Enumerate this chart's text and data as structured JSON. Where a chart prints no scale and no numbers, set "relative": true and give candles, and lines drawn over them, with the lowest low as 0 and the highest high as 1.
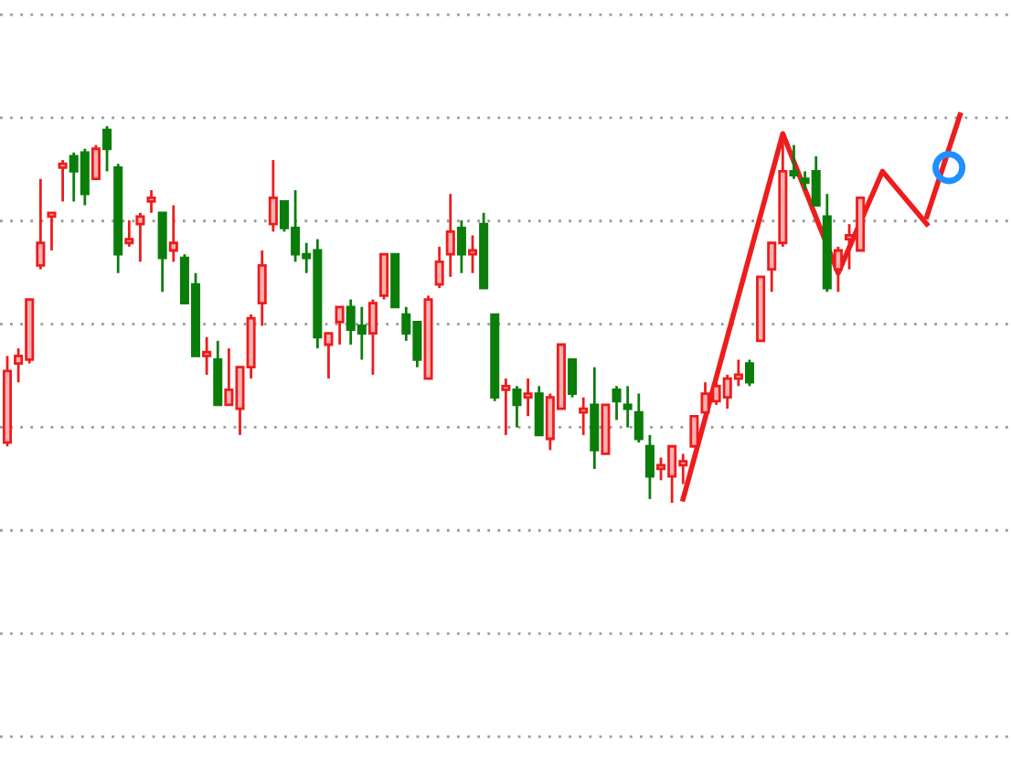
{
  "chart_data": {
    "type": "candlestick",
    "relative": true,
    "grid": "y",
    "tick_labels": false,
    "categories": [
      null,
      null,
      null,
      null,
      null,
      null,
      null,
      null,
      null,
      null,
      null,
      null,
      null,
      null,
      null,
      null,
      null,
      null,
      null,
      null,
      null,
      null,
      null,
      null,
      null,
      null,
      null,
      null,
      null,
      null,
      null,
      null,
      null,
      null,
      null,
      null,
      null,
      null,
      null,
      null,
      null,
      null,
      null,
      null,
      null,
      null,
      null,
      null,
      null,
      null,
      null,
      null,
      null,
      null,
      null,
      null,
      null,
      null,
      null,
      null,
      null,
      null,
      null,
      null,
      null,
      null,
      null,
      null,
      null,
      null,
      null,
      null,
      null,
      null,
      null,
      null,
      null,
      null,
      null,
      null,
      null,
      null,
      null,
      null,
      null,
      null,
      null,
      null,
      null,
      null,
      null
    ],
    "series": [
      {
        "type": "candlestick",
        "ohlc": [
          [
            0.16,
            0.39,
            0.15,
            0.35
          ],
          [
            0.37,
            0.41,
            0.32,
            0.39
          ],
          [
            0.38,
            0.54,
            0.37,
            0.54
          ],
          [
            0.63,
            0.86,
            0.62,
            0.69
          ],
          [
            0.76,
            0.77,
            0.67,
            0.77
          ],
          [
            0.89,
            0.91,
            0.8,
            0.9
          ],
          [
            0.92,
            0.93,
            0.8,
            0.88
          ],
          [
            0.93,
            0.94,
            0.79,
            0.82
          ],
          [
            0.86,
            0.95,
            0.86,
            0.94
          ],
          [
            0.99,
            1.0,
            0.88,
            0.94
          ],
          [
            0.89,
            0.9,
            0.61,
            0.66
          ],
          [
            0.69,
            0.75,
            0.68,
            0.7
          ],
          [
            0.74,
            0.77,
            0.64,
            0.76
          ],
          [
            0.8,
            0.83,
            0.77,
            0.81
          ],
          [
            0.77,
            0.77,
            0.56,
            0.65
          ],
          [
            0.67,
            0.79,
            0.64,
            0.69
          ],
          [
            0.65,
            0.66,
            0.53,
            0.53
          ],
          [
            0.58,
            0.61,
            0.39,
            0.39
          ],
          [
            0.39,
            0.44,
            0.34,
            0.4
          ],
          [
            0.38,
            0.43,
            0.26,
            0.26
          ],
          [
            0.26,
            0.41,
            0.26,
            0.3
          ],
          [
            0.25,
            0.36,
            0.18,
            0.36
          ],
          [
            0.36,
            0.5,
            0.33,
            0.49
          ],
          [
            0.53,
            0.67,
            0.47,
            0.63
          ],
          [
            0.74,
            0.91,
            0.72,
            0.81
          ],
          [
            0.8,
            0.8,
            0.72,
            0.73
          ],
          [
            0.73,
            0.83,
            0.64,
            0.66
          ],
          [
            0.66,
            0.69,
            0.61,
            0.65
          ],
          [
            0.67,
            0.7,
            0.41,
            0.44
          ],
          [
            0.42,
            0.45,
            0.33,
            0.45
          ],
          [
            0.48,
            0.52,
            0.42,
            0.52
          ],
          [
            0.52,
            0.54,
            0.42,
            0.46
          ],
          [
            0.47,
            0.52,
            0.38,
            0.45
          ],
          [
            0.45,
            0.54,
            0.34,
            0.53
          ],
          [
            0.55,
            0.66,
            0.54,
            0.66
          ],
          [
            0.66,
            0.66,
            0.52,
            0.52
          ],
          [
            0.5,
            0.52,
            0.43,
            0.45
          ],
          [
            0.48,
            0.48,
            0.36,
            0.38
          ],
          [
            0.33,
            0.55,
            0.33,
            0.54
          ],
          [
            0.58,
            0.68,
            0.57,
            0.64
          ],
          [
            0.66,
            0.82,
            0.6,
            0.72
          ],
          [
            0.73,
            0.75,
            0.61,
            0.66
          ],
          [
            0.66,
            0.71,
            0.61,
            0.67
          ],
          [
            0.74,
            0.77,
            0.57,
            0.57
          ],
          [
            0.5,
            0.5,
            0.27,
            0.28
          ],
          [
            0.3,
            0.33,
            0.18,
            0.31
          ],
          [
            0.3,
            0.31,
            0.2,
            0.26
          ],
          [
            0.28,
            0.33,
            0.23,
            0.29
          ],
          [
            0.29,
            0.31,
            0.18,
            0.18
          ],
          [
            0.17,
            0.29,
            0.14,
            0.28
          ],
          [
            0.25,
            0.42,
            0.25,
            0.42
          ],
          [
            0.38,
            0.38,
            0.28,
            0.29
          ],
          [
            0.24,
            0.28,
            0.18,
            0.25
          ],
          [
            0.26,
            0.36,
            0.09,
            0.14
          ],
          [
            0.13,
            0.26,
            0.13,
            0.26
          ],
          [
            0.3,
            0.31,
            0.22,
            0.27
          ],
          [
            0.26,
            0.31,
            0.2,
            0.25
          ],
          [
            0.24,
            0.29,
            0.16,
            0.17
          ],
          [
            0.15,
            0.18,
            0.01,
            0.07
          ],
          [
            0.09,
            0.12,
            0.06,
            0.1
          ],
          [
            0.07,
            0.15,
            0.0,
            0.15
          ],
          [
            0.1,
            0.13,
            0.05,
            0.11
          ],
          [
            0.15,
            0.23,
            0.15,
            0.23
          ],
          [
            0.24,
            0.32,
            0.22,
            0.29
          ],
          [
            0.27,
            0.33,
            0.26,
            0.31
          ],
          [
            0.28,
            0.34,
            0.25,
            0.33
          ],
          [
            0.33,
            0.38,
            0.31,
            0.34
          ],
          [
            0.37,
            0.38,
            0.31,
            0.32
          ],
          [
            0.43,
            0.6,
            0.43,
            0.6
          ],
          [
            0.62,
            0.69,
            0.56,
            0.69
          ],
          [
            0.69,
            0.97,
            0.68,
            0.88
          ],
          [
            0.88,
            0.95,
            0.86,
            0.87
          ],
          [
            0.86,
            0.88,
            0.83,
            0.85
          ],
          [
            0.88,
            0.92,
            0.79,
            0.79
          ],
          [
            0.76,
            0.82,
            0.56,
            0.57
          ],
          [
            0.62,
            0.68,
            0.56,
            0.67
          ],
          [
            0.7,
            0.74,
            0.62,
            0.71
          ],
          [
            0.67,
            0.81,
            0.67,
            0.81
          ],
          null,
          null,
          null,
          null,
          null,
          null,
          null,
          null,
          null,
          null,
          null,
          null,
          null
        ],
        "colors": [
          "#ee1c1c",
          "#ee1c1c",
          "#ee1c1c",
          "#ee1c1c",
          "#ee1c1c",
          "#ee1c1c",
          "#0b7d0b",
          "#0b7d0b",
          "#ee1c1c",
          "#0b7d0b",
          "#0b7d0b",
          "#ee1c1c",
          "#ee1c1c",
          "#ee1c1c",
          "#0b7d0b",
          "#ee1c1c",
          "#0b7d0b",
          "#0b7d0b",
          "#ee1c1c",
          "#0b7d0b",
          "#ee1c1c",
          "#ee1c1c",
          "#ee1c1c",
          "#ee1c1c",
          "#ee1c1c",
          "#0b7d0b",
          "#0b7d0b",
          "#0b7d0b",
          "#0b7d0b",
          "#ee1c1c",
          "#ee1c1c",
          "#0b7d0b",
          "#0b7d0b",
          "#ee1c1c",
          "#ee1c1c",
          "#0b7d0b",
          "#0b7d0b",
          "#0b7d0b",
          "#ee1c1c",
          "#ee1c1c",
          "#ee1c1c",
          "#0b7d0b",
          "#ee1c1c",
          "#0b7d0b",
          "#0b7d0b",
          "#ee1c1c",
          "#0b7d0b",
          "#ee1c1c",
          "#0b7d0b",
          "#ee1c1c",
          "#ee1c1c",
          "#0b7d0b",
          "#ee1c1c",
          "#0b7d0b",
          "#ee1c1c",
          "#0b7d0b",
          "#0b7d0b",
          "#0b7d0b",
          "#0b7d0b",
          "#ee1c1c",
          "#ee1c1c",
          "#ee1c1c",
          "#ee1c1c",
          "#ee1c1c",
          "#ee1c1c",
          "#ee1c1c",
          "#ee1c1c",
          "#0b7d0b",
          "#ee1c1c",
          "#ee1c1c",
          "#ee1c1c",
          "#0b7d0b",
          "#0b7d0b",
          "#0b7d0b",
          "#0b7d0b",
          "#ee1c1c",
          "#ee1c1c",
          "#ee1c1c",
          null,
          null,
          null,
          null,
          null,
          null,
          null,
          null,
          null,
          null,
          null,
          null,
          null
        ]
      },
      {
        "type": "line",
        "color": "#ee1c1c",
        "marker": "none",
        "line_style": "solid",
        "values": [
          null,
          null,
          null,
          null,
          null,
          null,
          null,
          null,
          null,
          null,
          null,
          null,
          null,
          null,
          null,
          null,
          null,
          null,
          null,
          null,
          null,
          null,
          null,
          null,
          null,
          null,
          null,
          null,
          null,
          null,
          null,
          null,
          null,
          null,
          null,
          null,
          null,
          null,
          null,
          null,
          null,
          null,
          null,
          null,
          null,
          null,
          null,
          null,
          null,
          null,
          null,
          null,
          null,
          null,
          null,
          null,
          null,
          null,
          null,
          null,
          null,
          0.01,
          null,
          null,
          null,
          null,
          null,
          null,
          null,
          null,
          0.98,
          null,
          null,
          null,
          null,
          0.61,
          null,
          null,
          null,
          0.88,
          null,
          null,
          null,
          0.74,
          null,
          null,
          null,
          null,
          null,
          null,
          null
        ]
      },
      {
        "type": "line",
        "color": "#ee1c1c",
        "marker": "none",
        "line_style": "solid",
        "values": [
          null,
          null,
          null,
          null,
          null,
          null,
          null,
          null,
          null,
          null,
          null,
          null,
          null,
          null,
          null,
          null,
          null,
          null,
          null,
          null,
          null,
          null,
          null,
          null,
          null,
          null,
          null,
          null,
          null,
          null,
          null,
          null,
          null,
          null,
          null,
          null,
          null,
          null,
          null,
          null,
          null,
          null,
          null,
          null,
          null,
          null,
          null,
          null,
          null,
          null,
          null,
          null,
          null,
          null,
          null,
          null,
          null,
          null,
          null,
          null,
          null,
          null,
          null,
          null,
          null,
          null,
          null,
          null,
          null,
          null,
          null,
          null,
          null,
          null,
          null,
          null,
          null,
          null,
          null,
          null,
          null,
          null,
          null,
          0.76,
          null,
          null,
          1.03,
          null,
          null,
          null,
          null
        ]
      },
      {
        "type": "scatter",
        "color": "#1e90ff",
        "marker": "circle",
        "values": [
          null,
          null,
          null,
          null,
          null,
          null,
          null,
          null,
          null,
          null,
          null,
          null,
          null,
          null,
          null,
          null,
          null,
          null,
          null,
          null,
          null,
          null,
          null,
          null,
          null,
          null,
          null,
          null,
          null,
          null,
          null,
          null,
          null,
          null,
          null,
          null,
          null,
          null,
          null,
          null,
          null,
          null,
          null,
          null,
          null,
          null,
          null,
          null,
          null,
          null,
          null,
          null,
          null,
          null,
          null,
          null,
          null,
          null,
          null,
          null,
          null,
          null,
          null,
          null,
          null,
          null,
          null,
          null,
          null,
          null,
          null,
          null,
          null,
          null,
          null,
          null,
          null,
          null,
          null,
          null,
          null,
          null,
          null,
          null,
          null,
          0.89,
          null,
          null,
          null,
          null,
          null
        ]
      }
    ]
  }
}
